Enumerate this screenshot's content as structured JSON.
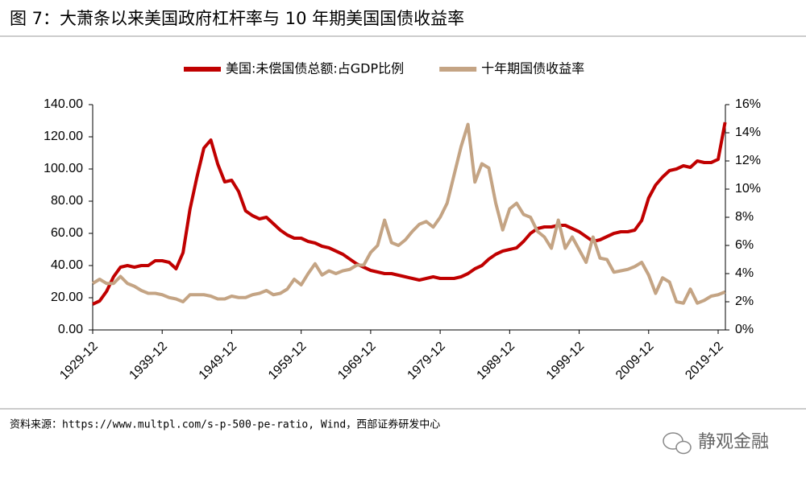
{
  "chart_data": {
    "type": "line",
    "title": "图 7：大萧条以来美国政府杠杆率与 10 年期美国国债收益率",
    "source": "资料来源：https://www.multpl.com/s-p-500-pe-ratio, Wind，西部证券研发中心",
    "watermark": "静观金融",
    "legend": "top",
    "categories": [
      "1929-12",
      null,
      null,
      null,
      null,
      null,
      null,
      null,
      null,
      null,
      "1939-12",
      null,
      null,
      null,
      null,
      null,
      null,
      null,
      null,
      null,
      "1949-12",
      null,
      null,
      null,
      null,
      null,
      null,
      null,
      null,
      null,
      "1959-12",
      null,
      null,
      null,
      null,
      null,
      null,
      null,
      null,
      null,
      "1969-12",
      null,
      null,
      null,
      null,
      null,
      null,
      null,
      null,
      null,
      "1979-12",
      null,
      null,
      null,
      null,
      null,
      null,
      null,
      null,
      null,
      "1989-12",
      null,
      null,
      null,
      null,
      null,
      null,
      null,
      null,
      null,
      "1999-12",
      null,
      null,
      null,
      null,
      null,
      null,
      null,
      null,
      null,
      "2009-12",
      null,
      null,
      null,
      null,
      null,
      null,
      null,
      null,
      null,
      "2019-12",
      null
    ],
    "ylim": [
      0,
      140
    ],
    "yticks": [
      {
        "value": 0,
        "label": "0.00"
      },
      {
        "value": 20,
        "label": "20.00"
      },
      {
        "value": 40,
        "label": "40.00"
      },
      {
        "value": 60,
        "label": "60.00"
      },
      {
        "value": 80,
        "label": "80.00"
      },
      {
        "value": 100,
        "label": "100.00"
      },
      {
        "value": 120,
        "label": "120.00"
      },
      {
        "value": 140,
        "label": "140.00"
      }
    ],
    "y2lim": [
      0,
      16
    ],
    "y2ticks": [
      {
        "value": 0,
        "label": "0%"
      },
      {
        "value": 2,
        "label": "2%"
      },
      {
        "value": 4,
        "label": "4%"
      },
      {
        "value": 6,
        "label": "6%"
      },
      {
        "value": 8,
        "label": "8%"
      },
      {
        "value": 10,
        "label": "10%"
      },
      {
        "value": 12,
        "label": "12%"
      },
      {
        "value": 14,
        "label": "14%"
      },
      {
        "value": 16,
        "label": "16%"
      }
    ],
    "series": [
      {
        "name": "美国:未偿国债总额:占GDP比例",
        "color": "#c00000",
        "axis": "y",
        "values": [
          16,
          18,
          24,
          33,
          39,
          40,
          39,
          40,
          40,
          43,
          43,
          42,
          38,
          48,
          75,
          95,
          113,
          118,
          103,
          92,
          93,
          86,
          74,
          71,
          69,
          70,
          66,
          62,
          59,
          57,
          57,
          55,
          54,
          52,
          51,
          49,
          47,
          44,
          41,
          39,
          37,
          36,
          35,
          35,
          34,
          33,
          32,
          31,
          32,
          33,
          32,
          32,
          32,
          33,
          35,
          38,
          40,
          44,
          47,
          49,
          50,
          51,
          55,
          60,
          63,
          64,
          64,
          65,
          65,
          63,
          61,
          58,
          55,
          56,
          58,
          60,
          61,
          61,
          62,
          68,
          82,
          90,
          95,
          99,
          100,
          102,
          101,
          105,
          104,
          104,
          106,
          129
        ]
      },
      {
        "name": "十年期国债收益率",
        "color": "#c4a484",
        "axis": "y2",
        "values": [
          3.3,
          3.6,
          3.3,
          3.3,
          3.8,
          3.3,
          3.1,
          2.8,
          2.6,
          2.6,
          2.5,
          2.3,
          2.2,
          2.0,
          2.5,
          2.5,
          2.5,
          2.4,
          2.2,
          2.2,
          2.4,
          2.3,
          2.3,
          2.5,
          2.6,
          2.8,
          2.5,
          2.6,
          2.9,
          3.6,
          3.2,
          4.0,
          4.7,
          3.9,
          4.2,
          4.0,
          4.2,
          4.3,
          4.6,
          4.6,
          5.5,
          6.0,
          7.8,
          6.2,
          6.0,
          6.4,
          7.0,
          7.5,
          7.7,
          7.3,
          8.0,
          9.0,
          11.0,
          13.0,
          14.6,
          10.5,
          11.8,
          11.5,
          9.0,
          7.1,
          8.6,
          9.0,
          8.2,
          8.0,
          7.0,
          6.6,
          5.8,
          7.8,
          5.8,
          6.6,
          5.7,
          4.8,
          6.6,
          5.1,
          5.0,
          4.1,
          4.2,
          4.3,
          4.5,
          4.8,
          3.9,
          2.6,
          3.7,
          3.4,
          2.0,
          1.9,
          2.9,
          1.9,
          2.1,
          2.4,
          2.5,
          2.7
        ]
      }
    ]
  }
}
